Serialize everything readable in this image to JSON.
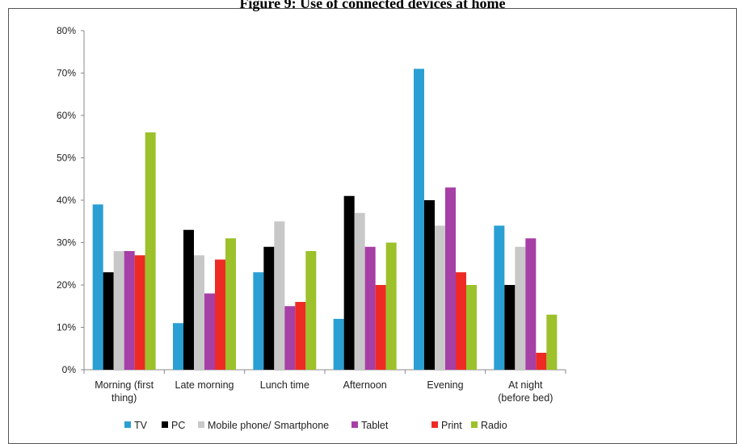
{
  "figure_title": "Figure 9: Use of connected devices at home",
  "chart_data": {
    "type": "bar",
    "title": "",
    "xlabel": "",
    "ylabel": "",
    "ylim": [
      0,
      80
    ],
    "yticks": [
      0,
      10,
      20,
      30,
      40,
      50,
      60,
      70,
      80
    ],
    "ytick_labels": [
      "0%",
      "10%",
      "20%",
      "30%",
      "40%",
      "50%",
      "60%",
      "70%",
      "80%"
    ],
    "grid": false,
    "legend_position": "bottom",
    "categories": [
      [
        "Morning (first",
        "thing)"
      ],
      [
        "Late morning"
      ],
      [
        "Lunch time"
      ],
      [
        "Afternoon"
      ],
      [
        "Evening"
      ],
      [
        "At night",
        "(before bed)"
      ]
    ],
    "series": [
      {
        "name": "TV",
        "color": "#2a9fd4",
        "values": [
          39,
          11,
          23,
          12,
          71,
          34
        ]
      },
      {
        "name": "PC",
        "color": "#000000",
        "values": [
          23,
          33,
          29,
          41,
          40,
          20
        ]
      },
      {
        "name": "Mobile phone/ Smartphone",
        "color": "#c8c8c8",
        "values": [
          28,
          27,
          35,
          37,
          34,
          29
        ]
      },
      {
        "name": "Tablet",
        "color": "#a63fa6",
        "values": [
          28,
          18,
          15,
          29,
          43,
          31
        ]
      },
      {
        "name": "Print",
        "color": "#ee2a24",
        "values": [
          27,
          26,
          16,
          20,
          23,
          4
        ]
      },
      {
        "name": "Radio",
        "color": "#9cc12a",
        "values": [
          56,
          31,
          28,
          30,
          20,
          13
        ]
      }
    ]
  }
}
